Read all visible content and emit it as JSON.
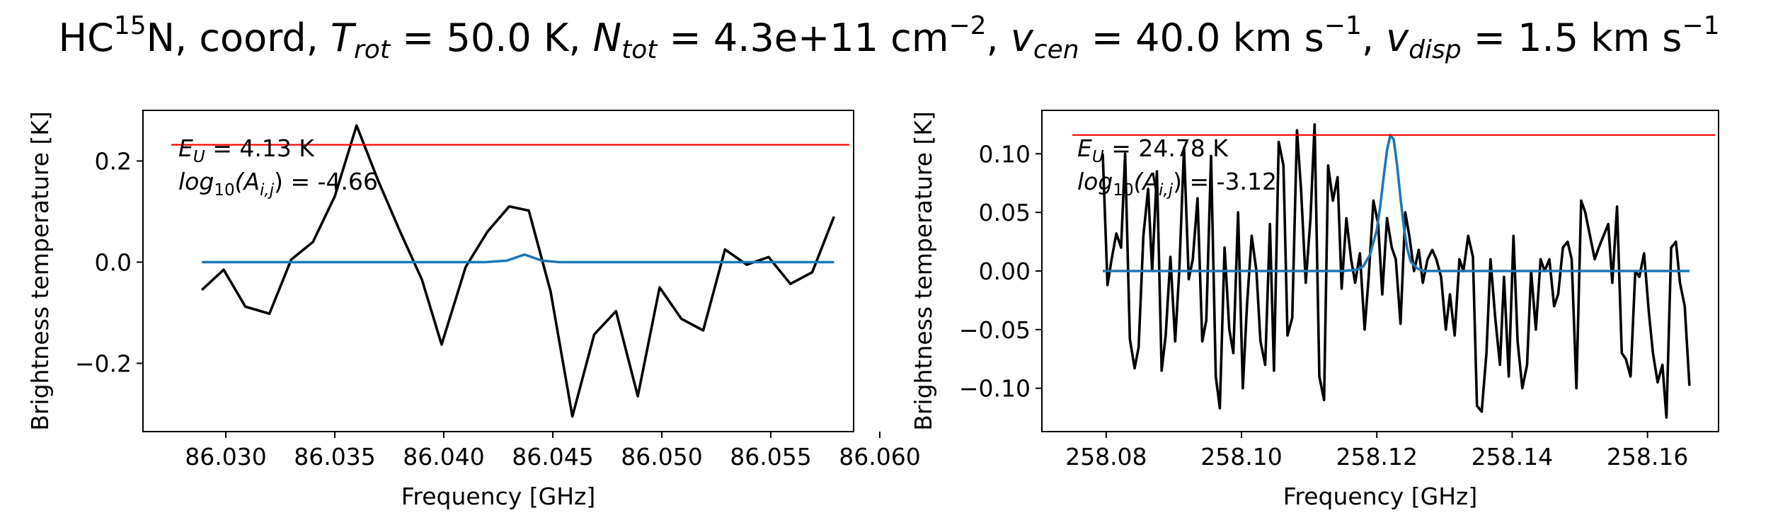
{
  "figure": {
    "title_parts": {
      "species": "HC",
      "isotope": "15",
      "species_tail": "N, coord, ",
      "trot_sym": "T",
      "trot_sub": "rot",
      "trot_val": " = 50.0 K, ",
      "ntot_sym": "N",
      "ntot_sub": "tot",
      "ntot_val": " = 4.3e+11 cm",
      "ntot_exp": "−2",
      "vcen_sep": ", ",
      "vcen_sym": "v",
      "vcen_sub": "cen",
      "vcen_val": " = 40.0 km s",
      "vcen_exp": "−1",
      "vdisp_sep": ", ",
      "vdisp_sym": "v",
      "vdisp_sub": "disp",
      "vdisp_val": " = 1.5 km s",
      "vdisp_exp": "−1"
    }
  },
  "chart_data": [
    {
      "type": "line",
      "xlabel": "Frequency [GHz]",
      "ylabel": "Brightness temperature [K]",
      "xlim": [
        86.0262,
        86.0588
      ],
      "ylim": [
        -0.335,
        0.3
      ],
      "xticks": [
        86.03,
        86.035,
        86.04,
        86.045,
        86.05,
        86.055,
        86.06
      ],
      "xtick_labels": [
        "86.030",
        "86.035",
        "86.040",
        "86.045",
        "86.050",
        "86.055",
        "86.060"
      ],
      "yticks": [
        -0.2,
        0.0,
        0.2
      ],
      "ytick_labels": [
        "−0.2",
        "0.0",
        "0.2"
      ],
      "annotation": {
        "eu_sym": "E",
        "eu_sub": "U",
        "eu_val": " = 4.13 K",
        "a_sym": "log",
        "a_sub": "10",
        "a_mid": "(A",
        "a_sub2": "i,j",
        "a_val": ") = -4.66"
      },
      "grid": false,
      "series": [
        {
          "color": "#000000",
          "x": [
            86.0289,
            86.0299,
            86.0309,
            86.032,
            86.033,
            86.034,
            86.035,
            86.036,
            86.037,
            86.038,
            86.039,
            86.0399,
            86.041,
            86.042,
            86.043,
            86.0439,
            86.0449,
            86.0459,
            86.0469,
            86.0479,
            86.0489,
            86.0499,
            86.0509,
            86.0519,
            86.0529,
            86.0539,
            86.0549,
            86.0559,
            86.0569,
            86.0579
          ],
          "y": [
            -0.055,
            -0.015,
            -0.088,
            -0.102,
            0.005,
            0.04,
            0.13,
            0.27,
            0.16,
            0.06,
            -0.035,
            -0.163,
            -0.01,
            0.06,
            0.11,
            0.102,
            -0.058,
            -0.305,
            -0.143,
            -0.097,
            -0.265,
            -0.05,
            -0.112,
            -0.135,
            0.025,
            -0.005,
            0.01,
            -0.043,
            -0.02,
            0.09
          ]
        },
        {
          "color": "#1f77b4",
          "x": [
            86.0289,
            86.0359,
            86.0409,
            86.0419,
            86.0429,
            86.0437,
            86.0445,
            86.0453,
            86.0469,
            86.0579
          ],
          "y": [
            0.0,
            0.0,
            0.0,
            0.0,
            0.003,
            0.015,
            0.003,
            0.0,
            0.0,
            0.0
          ]
        },
        {
          "color": "#ff0000",
          "x": [
            86.0275,
            86.0586
          ],
          "y": [
            0.232,
            0.232
          ]
        }
      ]
    },
    {
      "type": "line",
      "xlabel": "Frequency [GHz]",
      "ylabel": "Brightness temperature [K]",
      "xlim": [
        258.0705,
        258.1705
      ],
      "ylim": [
        -0.137,
        0.137
      ],
      "xticks": [
        258.08,
        258.1,
        258.12,
        258.14,
        258.16
      ],
      "xtick_labels": [
        "258.08",
        "258.10",
        "258.12",
        "258.14",
        "258.16"
      ],
      "yticks": [
        -0.1,
        -0.05,
        0.0,
        0.05,
        0.1
      ],
      "ytick_labels": [
        "−0.10",
        "−0.05",
        "0.00",
        "0.05",
        "0.10"
      ],
      "annotation": {
        "eu_sym": "E",
        "eu_sub": "U",
        "eu_val": " = 24.78 K",
        "a_sym": "log",
        "a_sub": "10",
        "a_mid": "(A",
        "a_sub2": "i,j",
        "a_val": ") = -3.12"
      },
      "grid": false,
      "series": [
        {
          "color": "#000000",
          "x": [
            258.0795,
            258.0802,
            258.0808,
            258.0815,
            258.0822,
            258.0828,
            258.0835,
            258.0842,
            258.0848,
            258.0855,
            258.0862,
            258.0868,
            258.0875,
            258.0882,
            258.0888,
            258.0895,
            258.0902,
            258.0908,
            258.0915,
            258.0922,
            258.0928,
            258.0935,
            258.0942,
            258.0948,
            258.0955,
            258.0962,
            258.0968,
            258.0975,
            258.0982,
            258.0988,
            258.0995,
            258.1002,
            258.1008,
            258.1015,
            258.1022,
            258.1028,
            258.1035,
            258.1042,
            258.1048,
            258.1055,
            258.1062,
            258.1068,
            258.1075,
            258.1082,
            258.1088,
            258.1095,
            258.1102,
            258.1108,
            258.1115,
            258.1122,
            258.1128,
            258.1135,
            258.1142,
            258.1148,
            258.1155,
            258.1162,
            258.1168,
            258.1175,
            258.1182,
            258.1188,
            258.1195,
            258.1202,
            258.1208,
            258.1215,
            258.1222,
            258.1228,
            258.1235,
            258.1242,
            258.1248,
            258.1255,
            258.1262,
            258.1268,
            258.1275,
            258.1282,
            258.1288,
            258.1295,
            258.1302,
            258.1308,
            258.1315,
            258.1322,
            258.1328,
            258.1335,
            258.1342,
            258.1348,
            258.1355,
            258.1362,
            258.1368,
            258.1375,
            258.1382,
            258.1388,
            258.1395,
            258.1402,
            258.1408,
            258.1415,
            258.1422,
            258.1428,
            258.1435,
            258.1442,
            258.1448,
            258.1455,
            258.1462,
            258.1468,
            258.1475,
            258.1482,
            258.1488,
            258.1495,
            258.1502,
            258.1508,
            258.1515,
            258.1522,
            258.1528,
            258.1535,
            258.1542,
            258.1548,
            258.1555,
            258.1562,
            258.1568,
            258.1575,
            258.1582,
            258.1588,
            258.1595,
            258.1602,
            258.1608,
            258.1615,
            258.1622,
            258.1628,
            258.1635,
            258.1642,
            258.1648,
            258.1655,
            258.1662
          ],
          "y": [
            0.1,
            -0.012,
            0.01,
            0.032,
            0.02,
            0.1,
            -0.058,
            -0.083,
            -0.065,
            0.03,
            0.07,
            0.0,
            0.085,
            -0.085,
            -0.055,
            0.012,
            -0.06,
            0.0,
            0.105,
            -0.007,
            0.01,
            0.062,
            -0.06,
            -0.042,
            0.098,
            -0.09,
            -0.117,
            0.02,
            -0.05,
            -0.07,
            0.05,
            -0.1,
            -0.03,
            0.03,
            0.0,
            -0.06,
            -0.08,
            0.04,
            -0.085,
            0.11,
            0.09,
            -0.055,
            -0.04,
            0.12,
            0.07,
            -0.01,
            0.045,
            0.125,
            -0.09,
            -0.11,
            0.09,
            0.06,
            0.08,
            -0.015,
            0.045,
            0.01,
            -0.01,
            0.015,
            -0.05,
            -0.005,
            0.06,
            0.04,
            -0.02,
            0.045,
            0.02,
            0.01,
            -0.045,
            0.05,
            0.03,
            0.0,
            0.018,
            -0.01,
            0.01,
            0.018,
            0.01,
            -0.005,
            -0.05,
            -0.02,
            -0.055,
            0.01,
            0.0,
            0.03,
            0.012,
            -0.115,
            -0.12,
            -0.07,
            0.01,
            -0.04,
            -0.08,
            -0.005,
            -0.09,
            0.03,
            -0.06,
            -0.1,
            -0.08,
            0.0,
            -0.05,
            0.01,
            0.0,
            0.01,
            -0.03,
            -0.02,
            0.02,
            0.025,
            0.01,
            -0.1,
            0.06,
            0.05,
            0.03,
            0.01,
            0.02,
            0.03,
            0.04,
            -0.01,
            0.055,
            -0.07,
            -0.075,
            -0.09,
            0.0,
            -0.005,
            0.015,
            -0.035,
            -0.07,
            -0.095,
            -0.08,
            -0.125,
            0.02,
            0.025,
            -0.01,
            -0.03,
            -0.098
          ],
          "comment_omit": ""
        },
        {
          "color": "#1f77b4",
          "x": [
            258.0795,
            258.115,
            258.117,
            258.118,
            258.119,
            258.12,
            258.1205,
            258.121,
            258.1215,
            258.122,
            258.1225,
            258.123,
            258.1235,
            258.124,
            258.1245,
            258.125,
            258.126,
            258.127,
            258.129,
            258.1662
          ],
          "y": [
            0.0,
            0.0,
            0.001,
            0.004,
            0.014,
            0.035,
            0.055,
            0.08,
            0.103,
            0.116,
            0.112,
            0.09,
            0.062,
            0.037,
            0.019,
            0.008,
            0.002,
            0.0,
            0.0,
            0.0
          ]
        },
        {
          "color": "#ff0000",
          "x": [
            258.075,
            258.17
          ],
          "y": [
            0.116,
            0.116
          ]
        }
      ]
    }
  ]
}
